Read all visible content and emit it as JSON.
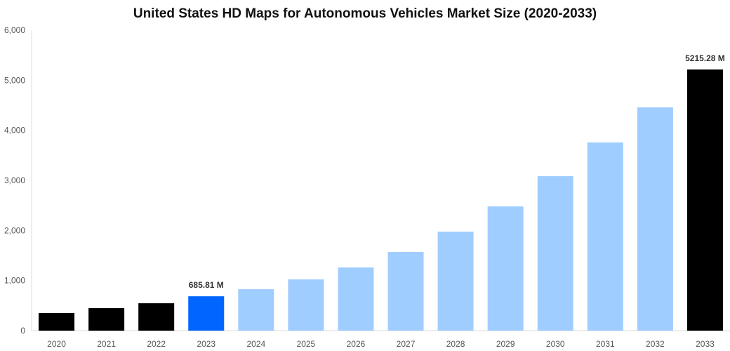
{
  "chart_data": {
    "type": "bar",
    "title": "United States HD Maps for Autonomous Vehicles Market Size (2020-2033)",
    "categories": [
      "2020",
      "2021",
      "2022",
      "2023",
      "2024",
      "2025",
      "2026",
      "2027",
      "2028",
      "2029",
      "2030",
      "2031",
      "2032",
      "2033"
    ],
    "values": [
      351,
      449,
      547,
      685.81,
      827,
      1024,
      1262,
      1571,
      1978,
      2482,
      3086,
      3759,
      4460,
      5215.28
    ],
    "colors": [
      "#000000",
      "#000000",
      "#000000",
      "#0066ff",
      "#a0cdff",
      "#a0cdff",
      "#a0cdff",
      "#a0cdff",
      "#a0cdff",
      "#a0cdff",
      "#a0cdff",
      "#a0cdff",
      "#a0cdff",
      "#000000"
    ],
    "data_labels": {
      "3": "685.81 M",
      "13": "5215.28 M"
    },
    "yticks": [
      "0",
      "1,000",
      "2,000",
      "3,000",
      "4,000",
      "5,000",
      "6,000"
    ],
    "ylim": [
      0,
      6000
    ],
    "xlabel": "",
    "ylabel": "",
    "grid": false
  }
}
